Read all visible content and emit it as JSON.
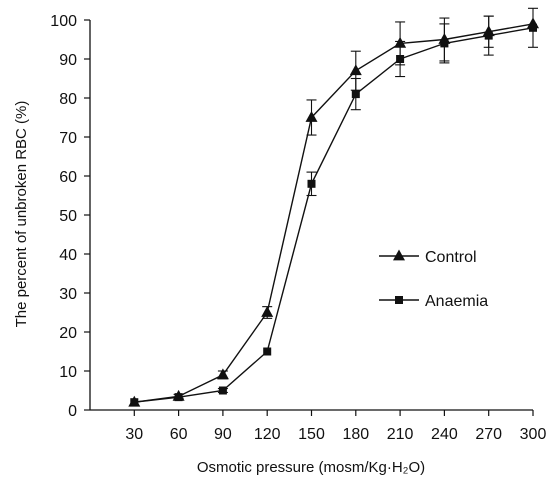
{
  "chart_data": {
    "type": "line",
    "xlabel": "Osmotic pressure (mosm/Kg·H₂O)",
    "ylabel": "The percent of unbroken RBC (%)",
    "x": [
      30,
      60,
      90,
      120,
      150,
      180,
      210,
      240,
      270,
      300
    ],
    "xlim": [
      0,
      300
    ],
    "ylim": [
      0,
      100
    ],
    "yticks": [
      0,
      10,
      20,
      30,
      40,
      50,
      60,
      70,
      80,
      90,
      100
    ],
    "xticks": [
      30,
      60,
      90,
      120,
      150,
      180,
      210,
      240,
      270,
      300
    ],
    "grid": false,
    "legend_position": "right",
    "series": [
      {
        "name": "Control",
        "marker": "triangle",
        "values": [
          2,
          3.5,
          9,
          25,
          75,
          87,
          94,
          95,
          97,
          99
        ],
        "errors": [
          0,
          0.5,
          1,
          1.5,
          4.5,
          5,
          5.5,
          5.5,
          4,
          0
        ]
      },
      {
        "name": "Anaemia",
        "marker": "square",
        "values": [
          2,
          3.3,
          5,
          15,
          58,
          81,
          90,
          94,
          96,
          98
        ],
        "errors": [
          0,
          0,
          0.5,
          0,
          3,
          4,
          4.5,
          5,
          5,
          5
        ]
      }
    ]
  }
}
